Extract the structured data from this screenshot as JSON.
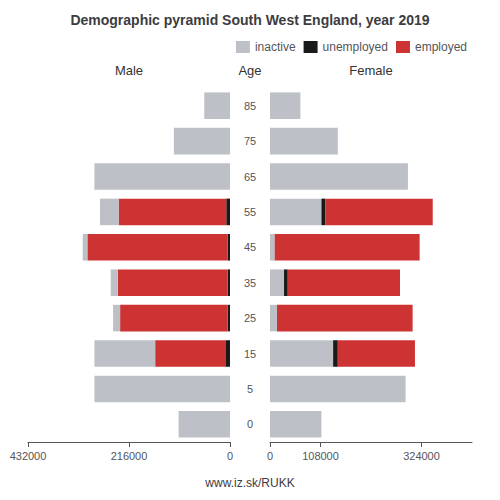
{
  "title": "Demographic pyramid South West England, year 2019",
  "subtitle": "www.iz.sk/RUKK",
  "chart_data": [
    {
      "type": "bar",
      "orientation": "horizontal",
      "stacked": true,
      "grid": false,
      "title": "Male",
      "ylabel": "Age",
      "categories": [
        "0",
        "5",
        "15",
        "25",
        "35",
        "45",
        "55",
        "65",
        "75",
        "85"
      ],
      "xlim": [
        432000,
        0
      ],
      "xticks": [
        432000,
        216000,
        0
      ],
      "series": [
        {
          "name": "unemployed",
          "color": "#1a1a1a",
          "values": [
            0,
            0,
            10000,
            5000,
            5000,
            5000,
            8000,
            0,
            0,
            0
          ]
        },
        {
          "name": "employed",
          "color": "#cd3333",
          "values": [
            0,
            0,
            150000,
            230000,
            235000,
            300000,
            230000,
            0,
            0,
            0
          ]
        },
        {
          "name": "inactive",
          "color": "#bdc1c7",
          "values": [
            110000,
            290000,
            130000,
            15000,
            15000,
            10000,
            40000,
            290000,
            120000,
            55000
          ]
        }
      ]
    },
    {
      "type": "bar",
      "orientation": "horizontal",
      "stacked": true,
      "grid": false,
      "title": "Female",
      "legend": "upper right",
      "categories": [
        "0",
        "5",
        "15",
        "25",
        "35",
        "45",
        "55",
        "65",
        "75",
        "85"
      ],
      "xlim": [
        0,
        432000
      ],
      "xticks": [
        0,
        108000,
        324000
      ],
      "series": [
        {
          "name": "inactive",
          "color": "#bdc1c7",
          "values": [
            110000,
            290000,
            135000,
            15000,
            30000,
            10000,
            110000,
            295000,
            145000,
            65000
          ]
        },
        {
          "name": "unemployed",
          "color": "#1a1a1a",
          "values": [
            0,
            0,
            10000,
            0,
            8000,
            0,
            8000,
            0,
            0,
            0
          ]
        },
        {
          "name": "employed",
          "color": "#cd3333",
          "values": [
            0,
            0,
            165000,
            290000,
            240000,
            310000,
            230000,
            0,
            0,
            0
          ]
        }
      ]
    }
  ]
}
